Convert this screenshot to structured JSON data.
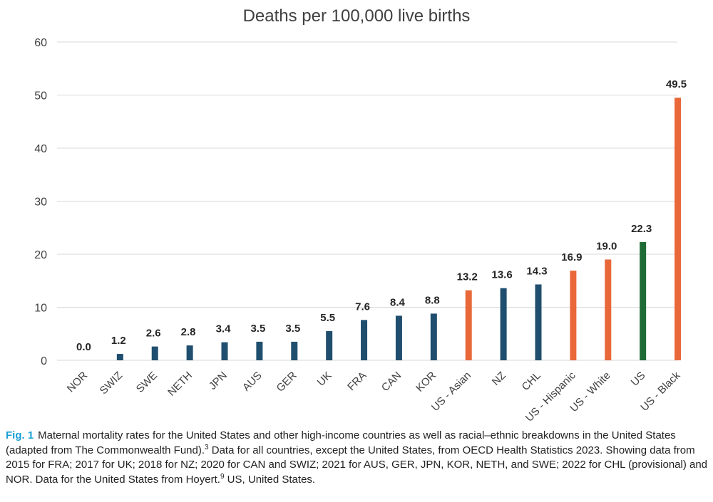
{
  "chart_data": {
    "type": "bar",
    "title": "Deaths per 100,000 live births",
    "xlabel": "",
    "ylabel": "",
    "ylim": [
      0,
      60
    ],
    "yticks": [
      0,
      10,
      20,
      30,
      40,
      50,
      60
    ],
    "grid": true,
    "categories": [
      "NOR",
      "SWIZ",
      "SWE",
      "NETH",
      "JPN",
      "AUS",
      "GER",
      "UK",
      "FRA",
      "CAN",
      "KOR",
      "US - Asian",
      "NZ",
      "CHL",
      "US - Hispanic",
      "US - White",
      "US",
      "US - Black"
    ],
    "values": [
      0.0,
      1.2,
      2.6,
      2.8,
      3.4,
      3.5,
      3.5,
      5.5,
      7.6,
      8.4,
      8.8,
      13.2,
      13.6,
      14.3,
      16.9,
      19.0,
      22.3,
      49.5
    ],
    "value_labels": [
      "0.0",
      "1.2",
      "2.6",
      "2.8",
      "3.4",
      "3.5",
      "3.5",
      "5.5",
      "7.6",
      "8.4",
      "8.8",
      "13.2",
      "13.6",
      "14.3",
      "16.9",
      "19.0",
      "22.3",
      "49.5"
    ],
    "bar_colors": [
      "#1f4e6e",
      "#1f4e6e",
      "#1f4e6e",
      "#1f4e6e",
      "#1f4e6e",
      "#1f4e6e",
      "#1f4e6e",
      "#1f4e6e",
      "#1f4e6e",
      "#1f4e6e",
      "#1f4e6e",
      "#e8683a",
      "#1f4e6e",
      "#1f4e6e",
      "#e8683a",
      "#e8683a",
      "#1e6b36",
      "#e8683a"
    ]
  },
  "caption": {
    "label": "Fig. 1",
    "part1": "Maternal mortality rates for the United States and other high-income countries as well as racial–ethnic breakdowns in the United States (adapted from The Commonwealth Fund).",
    "ref1": "3",
    "part2": " Data for all countries, except the United States, from OECD Health Statistics 2023. Showing data from 2015 for FRA; 2017 for UK; 2018 for NZ; 2020 for CAN and SWIZ; 2021 for AUS, GER, JPN, KOR, NETH, and SWE; 2022 for CHL (provisional) and NOR. Data for the United States from Hoyert.",
    "ref2": "9",
    "part3": " US, United States."
  }
}
